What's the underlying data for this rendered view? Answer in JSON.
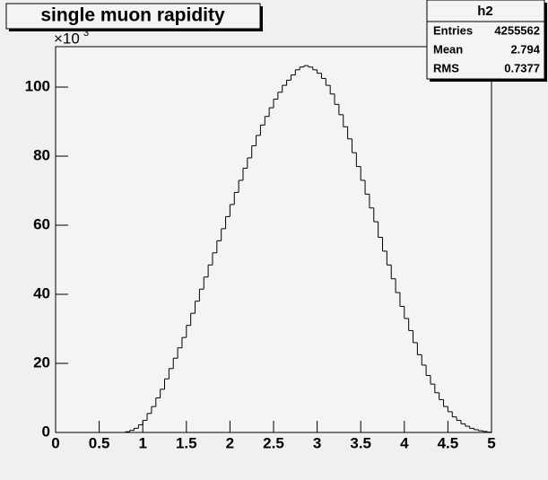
{
  "chart_data": {
    "type": "histogram",
    "title": "single muon rapidity",
    "bins": [
      0,
      0.05,
      0.1,
      0.15,
      0.2,
      0.25,
      0.3,
      0.35,
      0.4,
      0.45,
      0.5,
      0.55,
      0.6,
      0.65,
      0.7,
      0.75,
      0.8,
      0.85,
      0.9,
      0.95,
      1,
      1.05,
      1.1,
      1.15,
      1.2,
      1.25,
      1.3,
      1.35,
      1.4,
      1.45,
      1.5,
      1.55,
      1.6,
      1.65,
      1.7,
      1.75,
      1.8,
      1.85,
      1.9,
      1.95,
      2,
      2.05,
      2.1,
      2.15,
      2.2,
      2.25,
      2.3,
      2.35,
      2.4,
      2.45,
      2.5,
      2.55,
      2.6,
      2.65,
      2.7,
      2.75,
      2.8,
      2.85,
      2.9,
      2.95,
      3,
      3.05,
      3.1,
      3.15,
      3.2,
      3.25,
      3.3,
      3.35,
      3.4,
      3.45,
      3.5,
      3.55,
      3.6,
      3.65,
      3.7,
      3.75,
      3.8,
      3.85,
      3.9,
      3.95,
      4,
      4.05,
      4.1,
      4.15,
      4.2,
      4.25,
      4.3,
      4.35,
      4.4,
      4.45,
      4.5,
      4.55,
      4.6,
      4.65,
      4.7,
      4.75,
      4.8,
      4.85,
      4.9,
      4.95,
      5
    ],
    "values": [
      0,
      0,
      0,
      0,
      0,
      0,
      0,
      0,
      0,
      0,
      0,
      0,
      0,
      0,
      0,
      0,
      0.2,
      0.6,
      1.2,
      2.2,
      3.5,
      5.5,
      7.5,
      10,
      12.5,
      15.5,
      18.5,
      21.5,
      24.5,
      27.5,
      31,
      34.5,
      38,
      41.5,
      45,
      48.5,
      52,
      55.5,
      59,
      62.5,
      66,
      69.5,
      73,
      76.5,
      79.5,
      83,
      86,
      89,
      91.5,
      94,
      96.5,
      98.5,
      100.5,
      102,
      103.5,
      105,
      105.8,
      106.2,
      105.8,
      105,
      104,
      102.5,
      100.5,
      98,
      95,
      92,
      88.5,
      85,
      81,
      77,
      73,
      69,
      65,
      61,
      56.5,
      52.5,
      48.5,
      44.5,
      40.5,
      36.5,
      33,
      29.5,
      26,
      22.5,
      19.5,
      16.5,
      14,
      11.5,
      9.5,
      7.5,
      6,
      4.5,
      3.5,
      2.5,
      1.8,
      1.2,
      0.8,
      0.5,
      0.3,
      0.1
    ],
    "color": "#000000",
    "xlim": [
      0,
      5
    ],
    "xticks": [
      0,
      0.5,
      1,
      1.5,
      2,
      2.5,
      3,
      3.5,
      4,
      4.5,
      5
    ],
    "ylim": [
      0,
      111.7
    ],
    "yticks": [
      0,
      20,
      40,
      60,
      80,
      100
    ],
    "y_multiplier": {
      "base": "×10",
      "exponent": "3"
    },
    "stats": {
      "title": "h2",
      "rows": [
        [
          "Entries",
          "4255562"
        ],
        [
          "Mean",
          "2.794"
        ],
        [
          "RMS",
          "0.7377"
        ]
      ]
    }
  }
}
